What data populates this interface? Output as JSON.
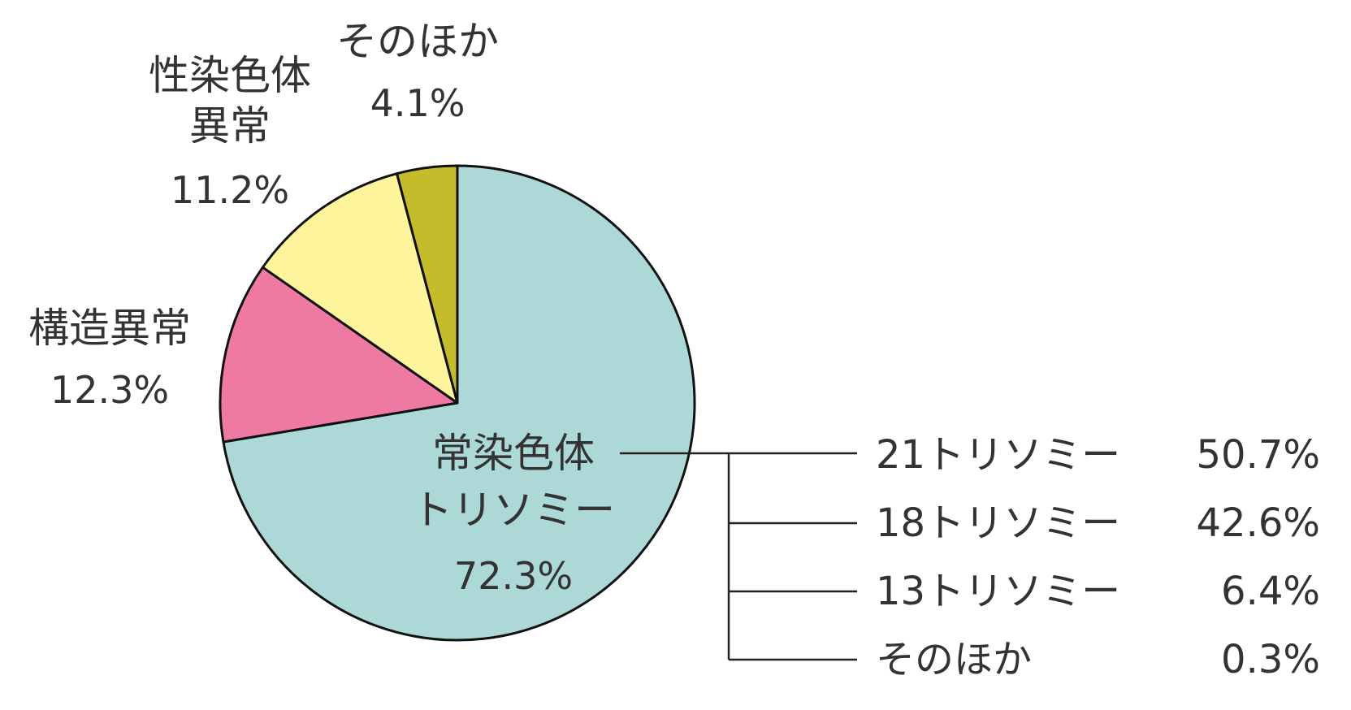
{
  "chart_data": {
    "type": "pie",
    "title": "",
    "slices": [
      {
        "name_lines": [
          "常染色体",
          "トリソミー"
        ],
        "percent_label": "72.3%",
        "value": 72.3,
        "color": "#acd9d8"
      },
      {
        "name_lines": [
          "構造異常"
        ],
        "percent_label": "12.3%",
        "value": 12.3,
        "color": "#ee7aa4"
      },
      {
        "name_lines": [
          "性染色体",
          "異常"
        ],
        "percent_label": "11.2%",
        "value": 11.2,
        "color": "#fdf49c"
      },
      {
        "name_lines": [
          "そのほか"
        ],
        "percent_label": "4.1%",
        "value": 4.1,
        "color": "#c4bc2b"
      }
    ],
    "breakdown": {
      "parent": "常染色体トリソミー",
      "items": [
        {
          "label": "21トリソミー",
          "percent_label": "50.7%",
          "value": 50.7
        },
        {
          "label": "18トリソミー",
          "percent_label": "42.6%",
          "value": 42.6
        },
        {
          "label": "13トリソミー",
          "percent_label": "6.4%",
          "value": 6.4
        },
        {
          "label": "そのほか",
          "percent_label": "0.3%",
          "value": 0.3
        }
      ]
    },
    "legend": "none",
    "start_angle": "12 o'clock",
    "direction": "clockwise"
  }
}
